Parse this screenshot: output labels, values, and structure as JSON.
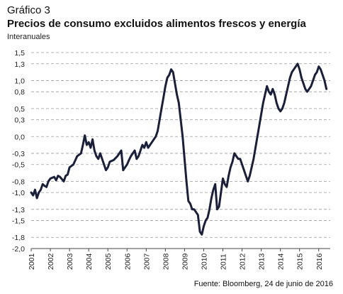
{
  "figure": {
    "label": "Gráfico 3",
    "title": "Precios de consumo excluidos alimentos frescos y energía",
    "subtitle": "Interanuales",
    "source": "Fuente: Bloomberg, 24 de junio de 2016"
  },
  "chart_data": {
    "type": "line",
    "title": "Precios de consumo excluidos alimentos frescos y energía",
    "subtitle": "Interanuales",
    "xlabel": "",
    "ylabel": "",
    "xlim": [
      2001.0,
      2016.6
    ],
    "ylim": [
      -2.0,
      1.5
    ],
    "yticks": [
      "1,5",
      "1,3",
      "1,0",
      "0,8",
      "0,5",
      "0,3",
      "0,0",
      "-0,3",
      "-0,5",
      "-0,8",
      "-1,0",
      "-1,3",
      "-1,5",
      "-1,8",
      "-2,0"
    ],
    "xticks": [
      "2001",
      "2002",
      "2003",
      "2004",
      "2005",
      "2006",
      "2007",
      "2008",
      "2009",
      "2010",
      "2011",
      "2012",
      "2013",
      "2014",
      "2015",
      "2016"
    ],
    "grid": "horizontal dashed",
    "line_color": "#1a1f3a",
    "series": [
      {
        "name": "",
        "x": [
          2001.0,
          2001.1,
          2001.2,
          2001.3,
          2001.4,
          2001.5,
          2001.6,
          2001.7,
          2001.8,
          2001.9,
          2002.0,
          2002.2,
          2002.3,
          2002.4,
          2002.5,
          2002.7,
          2002.8,
          2002.9,
          2003.0,
          2003.2,
          2003.4,
          2003.6,
          2003.7,
          2003.8,
          2003.9,
          2004.0,
          2004.1,
          2004.2,
          2004.3,
          2004.4,
          2004.5,
          2004.6,
          2004.8,
          2004.9,
          2005.0,
          2005.1,
          2005.3,
          2005.5,
          2005.7,
          2005.8,
          2006.0,
          2006.1,
          2006.2,
          2006.3,
          2006.4,
          2006.5,
          2006.6,
          2006.7,
          2006.8,
          2006.9,
          2007.0,
          2007.1,
          2007.2,
          2007.3,
          2007.4,
          2007.5,
          2007.6,
          2007.7,
          2007.8,
          2007.9,
          2008.0,
          2008.1,
          2008.2,
          2008.3,
          2008.4,
          2008.5,
          2008.6,
          2008.7,
          2008.8,
          2008.9,
          2009.0,
          2009.1,
          2009.2,
          2009.3,
          2009.4,
          2009.5,
          2009.6,
          2009.7,
          2009.8,
          2009.9,
          2010.0,
          2010.1,
          2010.2,
          2010.3,
          2010.4,
          2010.5,
          2010.6,
          2010.7,
          2010.8,
          2010.9,
          2011.0,
          2011.1,
          2011.2,
          2011.3,
          2011.4,
          2011.5,
          2011.6,
          2011.7,
          2011.8,
          2011.9,
          2012.0,
          2012.1,
          2012.2,
          2012.3,
          2012.4,
          2012.5,
          2012.6,
          2012.7,
          2012.8,
          2012.9,
          2013.0,
          2013.1,
          2013.2,
          2013.3,
          2013.4,
          2013.5,
          2013.6,
          2013.7,
          2013.8,
          2013.9,
          2014.0,
          2014.1,
          2014.2,
          2014.3,
          2014.4,
          2014.5,
          2014.6,
          2014.7,
          2014.8,
          2014.9,
          2015.0,
          2015.1,
          2015.2,
          2015.3,
          2015.4,
          2015.5,
          2015.6,
          2015.7,
          2015.8,
          2015.9,
          2016.0,
          2016.1,
          2016.2,
          2016.3,
          2016.4
        ],
        "y": [
          -1.0,
          -1.05,
          -0.95,
          -1.1,
          -1.0,
          -0.95,
          -0.85,
          -0.88,
          -0.9,
          -0.8,
          -0.75,
          -0.72,
          -0.78,
          -0.7,
          -0.72,
          -0.8,
          -0.7,
          -0.68,
          -0.55,
          -0.5,
          -0.35,
          -0.3,
          -0.15,
          0.02,
          -0.15,
          -0.1,
          -0.2,
          -0.05,
          -0.25,
          -0.35,
          -0.4,
          -0.3,
          -0.5,
          -0.6,
          -0.55,
          -0.45,
          -0.42,
          -0.35,
          -0.25,
          -0.6,
          -0.5,
          -0.42,
          -0.35,
          -0.3,
          -0.25,
          -0.4,
          -0.35,
          -0.25,
          -0.15,
          -0.2,
          -0.1,
          -0.2,
          -0.15,
          -0.1,
          -0.05,
          0.0,
          0.1,
          0.3,
          0.5,
          0.7,
          0.9,
          1.05,
          1.1,
          1.2,
          1.15,
          0.95,
          0.75,
          0.6,
          0.3,
          0.0,
          -0.4,
          -0.8,
          -1.15,
          -1.2,
          -1.3,
          -1.3,
          -1.35,
          -1.4,
          -1.7,
          -1.75,
          -1.6,
          -1.5,
          -1.45,
          -1.3,
          -1.1,
          -0.95,
          -0.85,
          -1.3,
          -1.25,
          -1.0,
          -0.75,
          -0.85,
          -0.9,
          -0.7,
          -0.55,
          -0.45,
          -0.3,
          -0.35,
          -0.4,
          -0.4,
          -0.5,
          -0.6,
          -0.7,
          -0.8,
          -0.7,
          -0.55,
          -0.4,
          -0.2,
          0.0,
          0.2,
          0.4,
          0.6,
          0.75,
          0.9,
          0.8,
          0.75,
          0.85,
          0.75,
          0.6,
          0.5,
          0.45,
          0.5,
          0.6,
          0.75,
          0.9,
          1.05,
          1.15,
          1.2,
          1.25,
          1.3,
          1.2,
          1.05,
          0.95,
          0.85,
          0.8,
          0.85,
          0.9,
          1.0,
          1.1,
          1.15,
          1.25,
          1.2,
          1.1,
          1.0,
          0.85
        ]
      }
    ]
  }
}
